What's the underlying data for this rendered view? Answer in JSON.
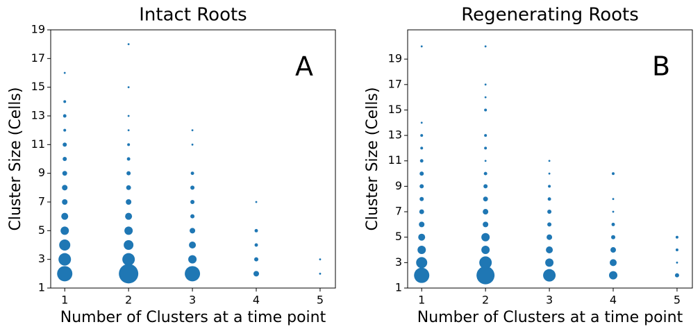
{
  "chart_data": [
    {
      "type": "scatter",
      "title": "Intact Roots",
      "x_label": "Number of Clusters at a time point",
      "y_label": "Cluster Size (Cells)",
      "annotation": "A",
      "color": "#1f77b4",
      "xlim": [
        0.78,
        5.24
      ],
      "ylim": [
        1,
        19
      ],
      "xticks": [
        1,
        2,
        3,
        4,
        5
      ],
      "yticks": [
        1,
        3,
        5,
        7,
        9,
        11,
        13,
        15,
        17,
        19
      ],
      "x": [
        1,
        1,
        1,
        1,
        1,
        1,
        1,
        1,
        1,
        1,
        1,
        1,
        1,
        1,
        2,
        2,
        2,
        2,
        2,
        2,
        2,
        2,
        2,
        2,
        2,
        2,
        2,
        2,
        3,
        3,
        3,
        3,
        3,
        3,
        3,
        3,
        3,
        3,
        4,
        4,
        4,
        4,
        4,
        5,
        5
      ],
      "y": [
        2,
        3,
        4,
        5,
        6,
        7,
        8,
        9,
        10,
        11,
        12,
        13,
        14,
        16,
        2,
        3,
        4,
        5,
        6,
        7,
        8,
        9,
        10,
        11,
        12,
        13,
        15,
        18,
        2,
        3,
        4,
        5,
        6,
        7,
        8,
        9,
        11,
        12,
        2,
        3,
        4,
        5,
        7,
        2,
        3
      ],
      "sizes": [
        121,
        81,
        64,
        36,
        25,
        16,
        16,
        12,
        9,
        9,
        4,
        6,
        4,
        2,
        196,
        81,
        49,
        36,
        25,
        16,
        12,
        9,
        6,
        4,
        2,
        2,
        2,
        2,
        121,
        36,
        25,
        16,
        9,
        9,
        9,
        6,
        2,
        2,
        16,
        9,
        6,
        6,
        2,
        2,
        2
      ]
    },
    {
      "type": "scatter",
      "title": "Regenerating Roots",
      "x_label": "Number of Clusters at a time point",
      "y_label": "Cluster Size (Cells)",
      "annotation": "B",
      "color": "#1f77b4",
      "xlim": [
        0.78,
        5.24
      ],
      "ylim": [
        1,
        21.3
      ],
      "xticks": [
        1,
        2,
        3,
        4,
        5
      ],
      "yticks": [
        1,
        3,
        5,
        7,
        9,
        11,
        13,
        15,
        17,
        19
      ],
      "x": [
        1,
        1,
        1,
        1,
        1,
        1,
        1,
        1,
        1,
        1,
        1,
        1,
        1,
        1,
        2,
        2,
        2,
        2,
        2,
        2,
        2,
        2,
        2,
        2,
        2,
        2,
        2,
        2,
        2,
        2,
        3,
        3,
        3,
        3,
        3,
        3,
        3,
        3,
        3,
        3,
        4,
        4,
        4,
        4,
        4,
        4,
        4,
        4,
        5,
        5,
        5,
        5
      ],
      "y": [
        2,
        3,
        4,
        5,
        6,
        7,
        8,
        9,
        10,
        11,
        12,
        13,
        14,
        20,
        2,
        3,
        4,
        5,
        6,
        7,
        8,
        9,
        10,
        11,
        12,
        13,
        15,
        16,
        17,
        20,
        2,
        3,
        4,
        5,
        6,
        7,
        8,
        9,
        10,
        11,
        2,
        3,
        4,
        5,
        6,
        7,
        8,
        10,
        2,
        3,
        4,
        5
      ],
      "sizes": [
        121,
        64,
        36,
        25,
        16,
        12,
        9,
        9,
        9,
        6,
        4,
        4,
        2,
        2,
        169,
        81,
        36,
        36,
        16,
        16,
        12,
        9,
        6,
        2,
        4,
        4,
        4,
        2,
        2,
        2,
        81,
        36,
        25,
        16,
        9,
        9,
        6,
        4,
        2,
        2,
        36,
        25,
        16,
        9,
        6,
        2,
        2,
        4,
        9,
        2,
        4,
        4
      ]
    }
  ]
}
